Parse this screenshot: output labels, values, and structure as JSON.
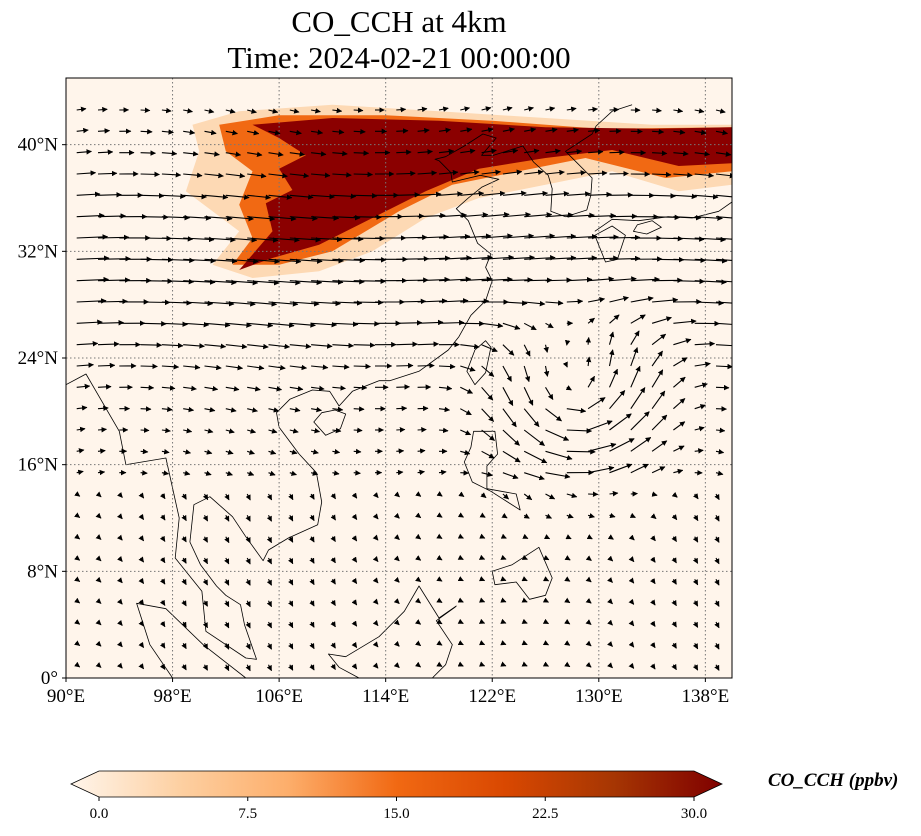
{
  "title": {
    "line1": "CO_CCH at 4km",
    "line2": "Time: 2024-02-21 00:00:00"
  },
  "map": {
    "lon_range": [
      90,
      140
    ],
    "lat_range": [
      0,
      45
    ],
    "lon_ticks": [
      {
        "value": 90,
        "label": "90°E"
      },
      {
        "value": 98,
        "label": "98°E"
      },
      {
        "value": 106,
        "label": "106°E"
      },
      {
        "value": 114,
        "label": "114°E"
      },
      {
        "value": 122,
        "label": "122°E"
      },
      {
        "value": 130,
        "label": "130°E"
      },
      {
        "value": 138,
        "label": "138°E"
      }
    ],
    "lat_ticks": [
      {
        "value": 0,
        "label": "0°"
      },
      {
        "value": 8,
        "label": "8°N"
      },
      {
        "value": 16,
        "label": "16°N"
      },
      {
        "value": 24,
        "label": "24°N"
      },
      {
        "value": 32,
        "label": "32°N"
      },
      {
        "value": 40,
        "label": "40°N"
      }
    ],
    "gridlines": "dotted",
    "plume_color": "#8b0000",
    "background_color": "#fff5eb",
    "cyclone_center": {
      "lon": 128,
      "lat": 21
    }
  },
  "colorbar": {
    "label": "CO_CCH (ppbv)",
    "min": 0,
    "max": 30,
    "extend": "both",
    "colormap": [
      "#fff5eb",
      "#fdd0a2",
      "#fdae6b",
      "#f16913",
      "#d94801",
      "#a63603",
      "#7f0000"
    ],
    "ticks": [
      {
        "value": 0,
        "label": "0.0"
      },
      {
        "value": 7.5,
        "label": "7.5"
      },
      {
        "value": 15,
        "label": "15.0"
      },
      {
        "value": 22.5,
        "label": "22.5"
      },
      {
        "value": 30,
        "label": "30.0"
      }
    ]
  }
}
